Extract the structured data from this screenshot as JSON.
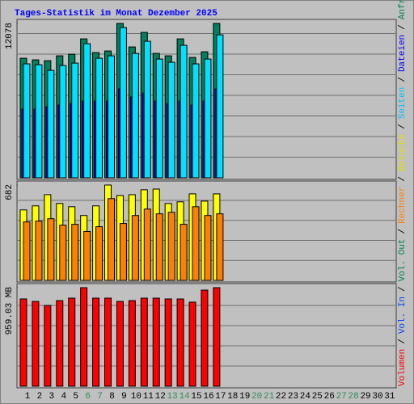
{
  "chart_data": [
    {
      "type": "bar",
      "title": "Tages-Statistik im Monat Dezember 2025",
      "title_color": "#0000ff",
      "ylim": [
        0,
        12078
      ],
      "yticks": [
        12078
      ],
      "gridlines": [
        1612,
        3224,
        4836,
        6448,
        8060,
        9672,
        11284
      ],
      "series": [
        {
          "name": "Seiten",
          "color": "#00e0ff",
          "legend_color": "#00c0ff",
          "values": [
            8912,
            8848,
            8406,
            8785,
            8974,
            10491,
            9354,
            9543,
            11755,
            9733,
            10681,
            9290,
            9038,
            10365,
            8912,
            9290,
            11186,
            null,
            null,
            null,
            null,
            null,
            null,
            null,
            null,
            null,
            null,
            null,
            null,
            null,
            null
          ]
        },
        {
          "name": "Dateien",
          "color": "#0000ff",
          "legend_color": "#0000ff",
          "values": [
            5372,
            5372,
            5562,
            5688,
            5814,
            6004,
            6004,
            6004,
            6952,
            6320,
            6636,
            6004,
            5814,
            6004,
            5688,
            6004,
            6952,
            null,
            null,
            null,
            null,
            null,
            null,
            null,
            null,
            null,
            null,
            null,
            null,
            null,
            null
          ]
        },
        {
          "name": "Anfragen",
          "color": "#00805c",
          "legend_color": "#00805c",
          "values": [
            9354,
            9227,
            9164,
            9543,
            9670,
            10870,
            9796,
            9922,
            12078,
            10238,
            11376,
            9733,
            9543,
            10870,
            9417,
            9859,
            12078,
            null,
            null,
            null,
            null,
            null,
            null,
            null,
            null,
            null,
            null,
            null,
            null,
            null,
            null
          ]
        }
      ]
    },
    {
      "type": "bar",
      "ylim": [
        0,
        682
      ],
      "yticks": [
        682
      ],
      "gridlines": [
        143,
        286,
        429,
        572
      ],
      "series": [
        {
          "name": "Rechner",
          "color": "#ff8000",
          "legend_color": "#ff8000",
          "values": [
            418,
            424,
            441,
            395,
            401,
            350,
            384,
            585,
            407,
            464,
            510,
            476,
            487,
            401,
            527,
            464,
            476,
            null,
            null,
            null,
            null,
            null,
            null,
            null,
            null,
            null,
            null,
            null,
            null,
            null,
            null
          ]
        },
        {
          "name": "Besuche",
          "color": "#ffff00",
          "legend_color": "#e0e000",
          "values": [
            504,
            533,
            613,
            550,
            527,
            464,
            533,
            682,
            607,
            613,
            648,
            653,
            550,
            562,
            619,
            567,
            619,
            null,
            null,
            null,
            null,
            null,
            null,
            null,
            null,
            null,
            null,
            null,
            null,
            null,
            null
          ]
        }
      ]
    },
    {
      "type": "bar",
      "ylim": [
        0,
        959.03
      ],
      "yticks": [
        {
          "value": 959.03,
          "label": "959.03 MB"
        }
      ],
      "gridlines": [
        197,
        393,
        590,
        786
      ],
      "categories": [
        "1",
        "2",
        "3",
        "4",
        "5",
        "6",
        "7",
        "8",
        "9",
        "10",
        "11",
        "12",
        "13",
        "14",
        "15",
        "16",
        "17",
        "18",
        "19",
        "20",
        "21",
        "22",
        "23",
        "24",
        "25",
        "26",
        "27",
        "28",
        "29",
        "30",
        "31"
      ],
      "highlight_categories": [
        "6",
        "7",
        "13",
        "14",
        "20",
        "21",
        "27",
        "28"
      ],
      "highlight_color": "#2e8b57",
      "legend_separator": "/",
      "series": [
        {
          "name": "Volumen",
          "color": "#ff0000",
          "legend_color": "#ff0000",
          "values": [
            849,
            825,
            786,
            833,
            857,
            959.03,
            857,
            857,
            825,
            833,
            857,
            857,
            849,
            849,
            818,
            935,
            959.03,
            null,
            null,
            null,
            null,
            null,
            null,
            null,
            null,
            null,
            null,
            null,
            null,
            null,
            null
          ]
        },
        {
          "name": "Vol. In",
          "color": "#0000ff",
          "legend_color": "#0040ff",
          "values": [
            null,
            null,
            null,
            null,
            null,
            null,
            null,
            null,
            null,
            null,
            null,
            null,
            null,
            null,
            null,
            null,
            null,
            null,
            null,
            null,
            null,
            null,
            null,
            null,
            null,
            null,
            null,
            null,
            null,
            null,
            null
          ]
        },
        {
          "name": "Vol. Out",
          "color": "#00805c",
          "legend_color": "#00805c",
          "values": [
            null,
            null,
            null,
            null,
            null,
            null,
            null,
            null,
            null,
            null,
            null,
            null,
            null,
            null,
            null,
            null,
            null,
            null,
            null,
            null,
            null,
            null,
            null,
            null,
            null,
            null,
            null,
            null,
            null,
            null,
            null
          ]
        }
      ]
    }
  ]
}
